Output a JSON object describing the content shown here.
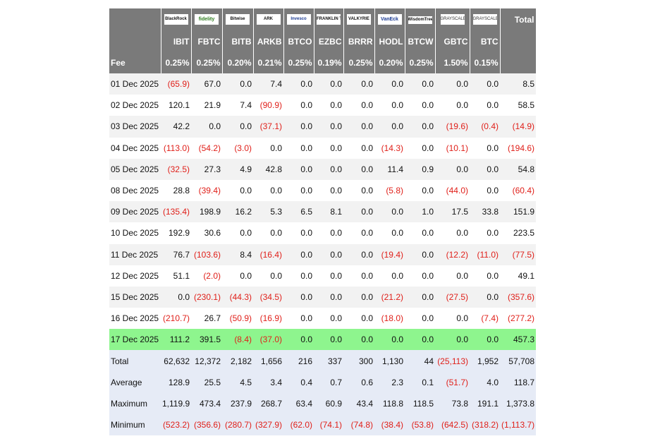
{
  "table": {
    "issuers": [
      {
        "logo_text": "BlackRock",
        "logo_icon": "blackrock-logo-icon"
      },
      {
        "logo_text": "fidelity",
        "logo_icon": "fidelity-logo-icon"
      },
      {
        "logo_text": "Bitwise",
        "logo_icon": "bitwise-logo-icon"
      },
      {
        "logo_text": "ARK",
        "logo_icon": "ark-invest-logo-icon"
      },
      {
        "logo_text": "Invesco",
        "logo_icon": "invesco-logo-icon"
      },
      {
        "logo_text": "FRANKLIN TEMPLETON",
        "logo_icon": "franklin-templeton-logo-icon"
      },
      {
        "logo_text": "VALKYRIE",
        "logo_icon": "valkyrie-logo-icon"
      },
      {
        "logo_text": "VanEck",
        "logo_icon": "vaneck-logo-icon"
      },
      {
        "logo_text": "WisdomTree",
        "logo_icon": "wisdomtree-logo-icon"
      },
      {
        "logo_text": "GRAYSCALE",
        "logo_icon": "grayscale-logo-icon"
      },
      {
        "logo_text": "GRAYSCALE",
        "logo_icon": "grayscale-logo-icon"
      }
    ],
    "total_header": "Total",
    "tickers": [
      "IBIT",
      "FBTC",
      "BITB",
      "ARKB",
      "BTCO",
      "EZBC",
      "BRRR",
      "HODL",
      "BTCW",
      "GBTC",
      "BTC"
    ],
    "fee_label": "Fee",
    "fees": [
      "0.25%",
      "0.25%",
      "0.20%",
      "0.21%",
      "0.25%",
      "0.19%",
      "0.25%",
      "0.20%",
      "0.25%",
      "1.50%",
      "0.15%"
    ],
    "rows": [
      {
        "date": "01 Dec 2025",
        "values": [
          "(65.9)",
          "67.0",
          "0.0",
          "7.4",
          "0.0",
          "0.0",
          "0.0",
          "0.0",
          "0.0",
          "0.0",
          "0.0"
        ],
        "total": "8.5"
      },
      {
        "date": "02 Dec 2025",
        "values": [
          "120.1",
          "21.9",
          "7.4",
          "(90.9)",
          "0.0",
          "0.0",
          "0.0",
          "0.0",
          "0.0",
          "0.0",
          "0.0"
        ],
        "total": "58.5"
      },
      {
        "date": "03 Dec 2025",
        "values": [
          "42.2",
          "0.0",
          "0.0",
          "(37.1)",
          "0.0",
          "0.0",
          "0.0",
          "0.0",
          "0.0",
          "(19.6)",
          "(0.4)"
        ],
        "total": "(14.9)"
      },
      {
        "date": "04 Dec 2025",
        "values": [
          "(113.0)",
          "(54.2)",
          "(3.0)",
          "0.0",
          "0.0",
          "0.0",
          "0.0",
          "(14.3)",
          "0.0",
          "(10.1)",
          "0.0"
        ],
        "total": "(194.6)"
      },
      {
        "date": "05 Dec 2025",
        "values": [
          "(32.5)",
          "27.3",
          "4.9",
          "42.8",
          "0.0",
          "0.0",
          "0.0",
          "11.4",
          "0.9",
          "0.0",
          "0.0"
        ],
        "total": "54.8"
      },
      {
        "date": "08 Dec 2025",
        "values": [
          "28.8",
          "(39.4)",
          "0.0",
          "0.0",
          "0.0",
          "0.0",
          "0.0",
          "(5.8)",
          "0.0",
          "(44.0)",
          "0.0"
        ],
        "total": "(60.4)"
      },
      {
        "date": "09 Dec 2025",
        "values": [
          "(135.4)",
          "198.9",
          "16.2",
          "5.3",
          "6.5",
          "8.1",
          "0.0",
          "0.0",
          "1.0",
          "17.5",
          "33.8"
        ],
        "total": "151.9"
      },
      {
        "date": "10 Dec 2025",
        "values": [
          "192.9",
          "30.6",
          "0.0",
          "0.0",
          "0.0",
          "0.0",
          "0.0",
          "0.0",
          "0.0",
          "0.0",
          "0.0"
        ],
        "total": "223.5"
      },
      {
        "date": "11 Dec 2025",
        "values": [
          "76.7",
          "(103.6)",
          "8.4",
          "(16.4)",
          "0.0",
          "0.0",
          "0.0",
          "(19.4)",
          "0.0",
          "(12.2)",
          "(11.0)"
        ],
        "total": "(77.5)"
      },
      {
        "date": "12 Dec 2025",
        "values": [
          "51.1",
          "(2.0)",
          "0.0",
          "0.0",
          "0.0",
          "0.0",
          "0.0",
          "0.0",
          "0.0",
          "0.0",
          "0.0"
        ],
        "total": "49.1"
      },
      {
        "date": "15 Dec 2025",
        "values": [
          "0.0",
          "(230.1)",
          "(44.3)",
          "(34.5)",
          "0.0",
          "0.0",
          "0.0",
          "(21.2)",
          "0.0",
          "(27.5)",
          "0.0"
        ],
        "total": "(357.6)"
      },
      {
        "date": "16 Dec 2025",
        "values": [
          "(210.7)",
          "26.7",
          "(50.9)",
          "(16.9)",
          "0.0",
          "0.0",
          "0.0",
          "(18.0)",
          "0.0",
          "0.0",
          "(7.4)"
        ],
        "total": "(277.2)"
      },
      {
        "date": "17 Dec 2025",
        "values": [
          "111.2",
          "391.5",
          "(8.4)",
          "(37.0)",
          "0.0",
          "0.0",
          "0.0",
          "0.0",
          "0.0",
          "0.0",
          "0.0"
        ],
        "total": "457.3",
        "highlight": true
      }
    ],
    "stats": [
      {
        "label": "Total",
        "values": [
          "62,632",
          "12,372",
          "2,182",
          "1,656",
          "216",
          "337",
          "300",
          "1,130",
          "44",
          "(25,113)",
          "1,952"
        ],
        "total": "57,708"
      },
      {
        "label": "Average",
        "values": [
          "128.9",
          "25.5",
          "4.5",
          "3.4",
          "0.4",
          "0.7",
          "0.6",
          "2.3",
          "0.1",
          "(51.7)",
          "4.0"
        ],
        "total": "118.7"
      },
      {
        "label": "Maximum",
        "values": [
          "1,119.9",
          "473.4",
          "237.9",
          "268.7",
          "63.4",
          "60.9",
          "43.4",
          "118.8",
          "118.5",
          "73.8",
          "191.1"
        ],
        "total": "1,373.8"
      },
      {
        "label": "Minimum",
        "values": [
          "(523.2)",
          "(356.6)",
          "(280.7)",
          "(327.9)",
          "(62.0)",
          "(74.1)",
          "(74.8)",
          "(38.4)",
          "(53.8)",
          "(642.5)",
          "(318.2)"
        ],
        "total": "(1,113.7)"
      }
    ],
    "colors": {
      "header_bg": "#7a7a7a",
      "negative": "#e0201a",
      "highlight_row": "#8ef58e",
      "stats_bg": "#e6ebf6"
    }
  }
}
